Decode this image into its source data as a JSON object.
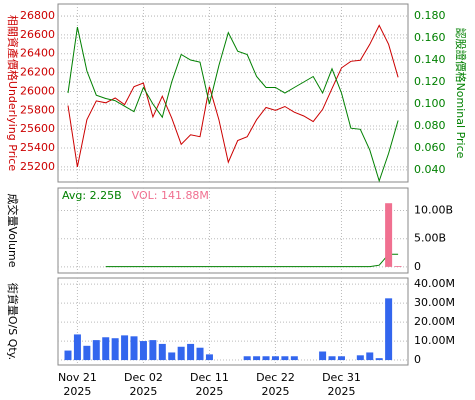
{
  "chart_data": [
    {
      "type": "line",
      "ylabel": "相關資產價格Underlying Price",
      "y2label": "認股證價格Nominal Price",
      "ylim": [
        25040,
        26927
      ],
      "yticks": [
        25200,
        25400,
        25600,
        25800,
        26000,
        26200,
        26400,
        26600,
        26800
      ],
      "y2lim": [
        0.029,
        0.191
      ],
      "y2ticks": [
        {
          "value": 0.04,
          "label": "0.040"
        },
        {
          "value": 0.06,
          "label": "0.060"
        },
        {
          "value": 0.08,
          "label": "0.080"
        },
        {
          "value": 0.1,
          "label": "0.100"
        },
        {
          "value": 0.12,
          "label": "0.120"
        },
        {
          "value": 0.14,
          "label": "0.140"
        },
        {
          "value": 0.16,
          "label": "0.160"
        },
        {
          "value": 0.18,
          "label": "0.180"
        }
      ],
      "label_color": "#cc0000",
      "label2_color": "#008000",
      "series": [
        {
          "type": "line",
          "color": "#cc0000",
          "values": [
            25850,
            25200,
            25700,
            25900,
            25880,
            25930,
            25860,
            26050,
            26090,
            25730,
            25950,
            25720,
            25440,
            25540,
            25520,
            26050,
            25700,
            25250,
            25480,
            25520,
            25700,
            25830,
            25800,
            25840,
            25780,
            25740,
            25680,
            25810,
            26030,
            26250,
            26320,
            26330,
            26500,
            26700,
            26500,
            26150
          ]
        },
        {
          "type": "line",
          "axis": "y2",
          "color": "#008000",
          "values": [
            0.11,
            0.17,
            0.13,
            0.108,
            0.105,
            0.103,
            0.098,
            0.093,
            0.115,
            0.1,
            0.088,
            0.12,
            0.145,
            0.14,
            0.138,
            0.1,
            0.135,
            0.165,
            0.148,
            0.145,
            0.125,
            0.115,
            0.115,
            0.11,
            0.115,
            0.12,
            0.125,
            0.11,
            0.132,
            0.11,
            0.078,
            0.077,
            0.058,
            0.03,
            0.055,
            0.085
          ]
        }
      ],
      "grid": true
    },
    {
      "type": "bar",
      "ylabel": "成交量Volume",
      "ylim": [
        -1090000000,
        14000000000
      ],
      "yticks": [
        0,
        {
          "value": 5000000000,
          "label": "5.00B"
        },
        {
          "value": 10000000000,
          "label": "10.00B"
        }
      ],
      "series": [
        {
          "name": "Avg: 2.25B",
          "type": "line",
          "color": "#008000",
          "values": [
            null,
            null,
            null,
            null,
            50000000,
            50000000,
            50000000,
            50000000,
            50000000,
            50000000,
            50000000,
            50000000,
            50000000,
            50000000,
            50000000,
            50000000,
            50000000,
            50000000,
            50000000,
            50000000,
            50000000,
            50000000,
            50000000,
            50000000,
            50000000,
            50000000,
            50000000,
            50000000,
            50000000,
            50000000,
            50000000,
            50000000,
            50000000,
            300000000,
            2250000000,
            2250000000
          ]
        },
        {
          "name": "VOL: 141.88M",
          "type": "bar",
          "color": "#f07090",
          "values": [
            null,
            null,
            null,
            null,
            null,
            null,
            null,
            null,
            null,
            null,
            null,
            null,
            null,
            null,
            null,
            null,
            null,
            null,
            null,
            null,
            null,
            null,
            null,
            null,
            null,
            null,
            null,
            null,
            null,
            null,
            null,
            null,
            null,
            null,
            11300000000,
            141880000
          ]
        }
      ],
      "grid": true
    },
    {
      "type": "bar",
      "ylabel": "街貨量O/S Qty.",
      "ylim": [
        -2600000,
        43200000
      ],
      "yticks": [
        0,
        {
          "value": 10000000,
          "label": "10.00M"
        },
        {
          "value": 20000000,
          "label": "20.00M"
        },
        {
          "value": 30000000,
          "label": "30.00M"
        },
        {
          "value": 40000000,
          "label": "40.00M"
        }
      ],
      "series": [
        {
          "type": "bar",
          "color": "#3366ee",
          "values": [
            5000000,
            13500000,
            7500000,
            10500000,
            12000000,
            11500000,
            13000000,
            12500000,
            10000000,
            10500000,
            8500000,
            4000000,
            7000000,
            8500000,
            6500000,
            3000000,
            null,
            null,
            null,
            2000000,
            2000000,
            2000000,
            2000000,
            2000000,
            2000000,
            null,
            null,
            4500000,
            2000000,
            2000000,
            null,
            2500000,
            4000000,
            1000000,
            32500000,
            null
          ]
        }
      ],
      "categories": [
        null,
        "Nov 21",
        null,
        null,
        null,
        null,
        null,
        null,
        "Dec 02",
        null,
        null,
        null,
        null,
        null,
        null,
        "Dec 11",
        null,
        null,
        null,
        null,
        null,
        null,
        "Dec 22",
        null,
        null,
        null,
        null,
        null,
        null,
        "Dec 31",
        null,
        null,
        null,
        null,
        null,
        null
      ],
      "x_year": "2025",
      "grid": true
    }
  ]
}
